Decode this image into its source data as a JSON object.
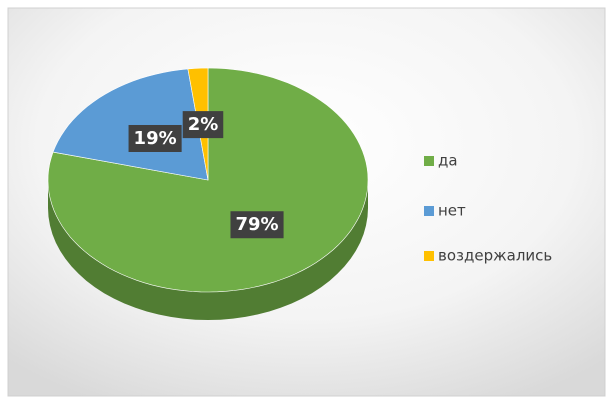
{
  "chart_data": {
    "type": "pie",
    "categories": [
      "да",
      "нет",
      "воздержались"
    ],
    "values": [
      79,
      19,
      2
    ],
    "value_labels": [
      "79%",
      "19%",
      "2%"
    ],
    "colors": [
      "#70ad47",
      "#5b9bd5",
      "#ffc000"
    ],
    "legend": "right"
  }
}
